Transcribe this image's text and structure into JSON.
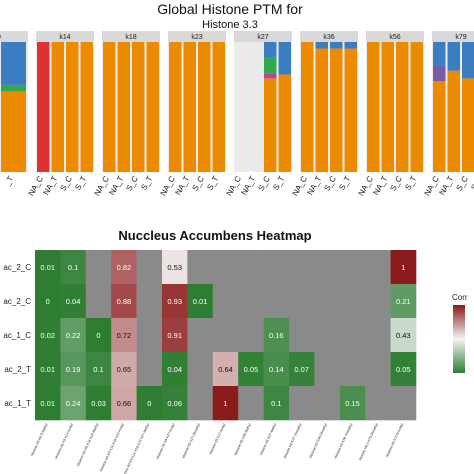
{
  "chart_data": [
    {
      "type": "bar",
      "stacked": true,
      "title": "Global Histone PTM for",
      "subtitle": "Histone 3.3",
      "panels": [
        {
          "label": "9",
          "categories": [
            "_C",
            "_T"
          ],
          "series": [
            {
              "color": "#7b5aa6",
              "values": [
                0,
                0
              ]
            },
            {
              "color": "#ed8b00",
              "values": [
                0.62,
                0.62
              ]
            },
            {
              "color": "#2fa84f",
              "values": [
                0.05,
                0.05
              ]
            },
            {
              "color": "#3a7dc0",
              "values": [
                0.33,
                0.33
              ]
            }
          ]
        },
        {
          "label": "k14",
          "categories": [
            "NA_C",
            "NA_T",
            "S_C",
            "S_T"
          ],
          "series": [
            {
              "color": "#e03131",
              "values": [
                1,
                0,
                0,
                0
              ]
            },
            {
              "color": "#ed8b00",
              "values": [
                0,
                1,
                1,
                1
              ]
            }
          ]
        },
        {
          "label": "k18",
          "categories": [
            "NA_C",
            "NA_T",
            "S_C",
            "S_T"
          ],
          "series": [
            {
              "color": "#ed8b00",
              "values": [
                1,
                1,
                1,
                1
              ]
            }
          ]
        },
        {
          "label": "k23",
          "categories": [
            "NA_C",
            "NA_T",
            "S_C",
            "S_T"
          ],
          "series": [
            {
              "color": "#ed8b00",
              "values": [
                1,
                1,
                1,
                1
              ]
            }
          ]
        },
        {
          "label": "k27",
          "categories": [
            "NA_C",
            "NA_T",
            "S_C",
            "S_T"
          ],
          "series": [
            {
              "color": "#ed8b00",
              "values": [
                0,
                0,
                0.72,
                0.75
              ]
            },
            {
              "color": "#c0438f",
              "values": [
                0,
                0,
                0.04,
                0
              ]
            },
            {
              "color": "#2fa84f",
              "values": [
                0,
                0,
                0.12,
                0
              ]
            },
            {
              "color": "#3a7dc0",
              "values": [
                0,
                0,
                0.12,
                0.25
              ]
            }
          ]
        },
        {
          "label": "k36",
          "categories": [
            "NA_C",
            "NA_T",
            "S_C",
            "S_T"
          ],
          "series": [
            {
              "color": "#ed8b00",
              "values": [
                1,
                0.95,
                0.95,
                0.95
              ]
            },
            {
              "color": "#3a7dc0",
              "values": [
                0,
                0.05,
                0.05,
                0.05
              ]
            }
          ]
        },
        {
          "label": "k56",
          "categories": [
            "NA_C",
            "NA_T",
            "S_C",
            "S_T"
          ],
          "series": [
            {
              "color": "#ed8b00",
              "values": [
                1,
                1,
                1,
                1
              ]
            }
          ]
        },
        {
          "label": "k79",
          "categories": [
            "NA_C",
            "NA_T",
            "S_C",
            "S_T"
          ],
          "series": [
            {
              "color": "#ed8b00",
              "values": [
                0.7,
                0.78,
                0.72,
                0.78
              ]
            },
            {
              "color": "#7b5aa6",
              "values": [
                0.12,
                0,
                0,
                0
              ]
            },
            {
              "color": "#3a7dc0",
              "values": [
                0.18,
                0.22,
                0.28,
                0.22
              ]
            }
          ]
        }
      ]
    },
    {
      "type": "heatmap",
      "title": "Nuccleus Accumbens Heatmap",
      "rows": [
        "ac_2_C",
        "ac_2_C",
        "ac_1_C",
        "ac_2_T",
        "ac_1_T"
      ],
      "columns": [
        "Histone H3 K9 9 Methyl",
        "Histone H3 K9 K14 Acetyl",
        "Histone H3 K9 K14 K18 Methyl",
        "Histone H3 K9 K14 K18 K23 Acetyl",
        "Histone H3 K9 K14 K18 K23 K27 Methyl",
        "Histone H3 K9 K27 Acetyl",
        "Histone H3 K27 Dimethyl",
        "Histone H3 K27 Acetyl",
        "Histone H3 K36 Methyl",
        "Histone H3 K27 Methyl",
        "Histone H3 K27 Trimethyl",
        "Histone H3 K36 Dimethyl",
        "Histone H3 K56 Trimethyl",
        "Histone H3.3 K79 Dimethyl",
        "Histone H3.3 K79 Acetyl"
      ],
      "cells": [
        [
          0.01,
          0.1,
          null,
          0.82,
          null,
          0.53,
          null,
          null,
          null,
          null,
          null,
          null,
          null,
          null,
          1
        ],
        [
          0,
          0.04,
          null,
          0.88,
          null,
          0.93,
          0.01,
          null,
          null,
          null,
          null,
          null,
          null,
          null,
          0.21
        ],
        [
          0.02,
          0.22,
          0,
          0.72,
          null,
          0.91,
          null,
          null,
          null,
          0.16,
          null,
          null,
          null,
          null,
          0.43
        ],
        [
          0.01,
          0.19,
          0.1,
          0.65,
          null,
          0.04,
          null,
          0.64,
          0.05,
          0.14,
          0.07,
          null,
          null,
          null,
          0.05
        ],
        [
          0.01,
          0.24,
          0.03,
          0.66,
          0,
          0.06,
          null,
          1,
          null,
          0.1,
          null,
          null,
          0.15,
          null,
          null
        ]
      ],
      "legend_title": "Corr",
      "colors": {
        "low": "#2e7d32",
        "mid": "#f4f4f4",
        "high": "#8b1a1a",
        "na": "#8a8a8a"
      }
    }
  ]
}
